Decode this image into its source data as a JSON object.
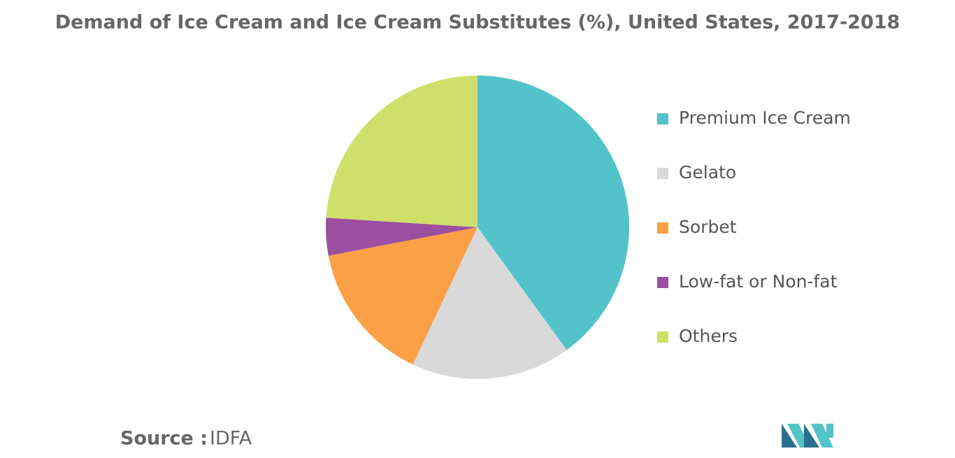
{
  "chart_data": {
    "type": "pie",
    "title": "Demand of Ice Cream and Ice Cream Substitutes (%), United States, 2017-2018",
    "categories": [
      "Premium Ice Cream",
      "Gelato",
      "Sorbet",
      "Low-fat or Non-fat",
      "Others"
    ],
    "values": [
      40,
      17,
      15,
      4,
      24
    ],
    "colors": [
      "#52c4c9",
      "#d9d9d9",
      "#fba047",
      "#9c4fa0",
      "#cfe06a"
    ],
    "legend": "right"
  },
  "footer": {
    "source_label": "Source :",
    "source": "IDFA"
  }
}
